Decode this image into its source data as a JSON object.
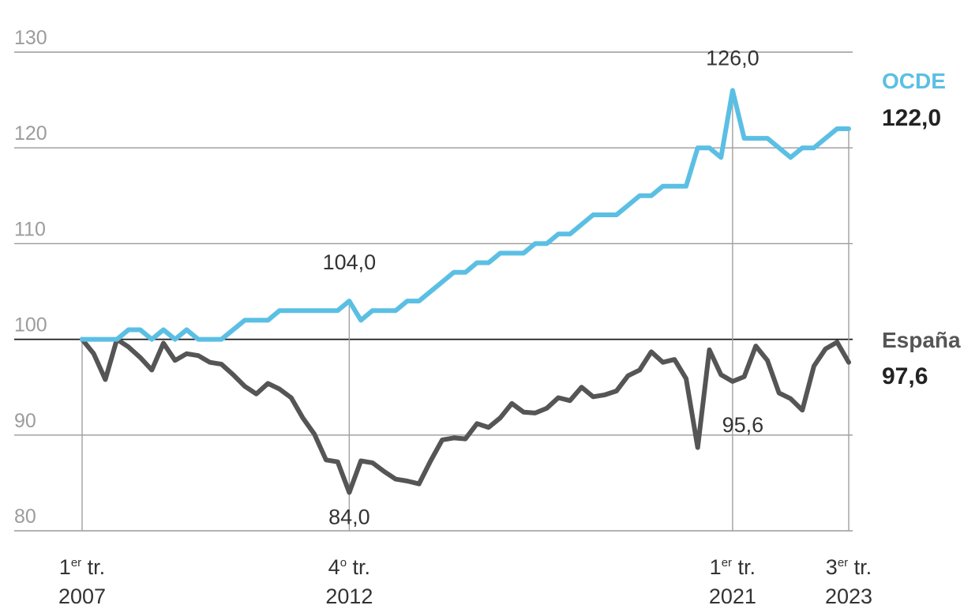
{
  "chart_data": {
    "type": "line",
    "ylim": [
      80,
      130
    ],
    "yticks": [
      "80",
      "90",
      "100",
      "110",
      "120",
      "130"
    ],
    "baseline": 100,
    "x_labels": [
      {
        "line1": "1",
        "sup": "er",
        "line1b": " tr.",
        "line2": "2007",
        "index": 0
      },
      {
        "line1": "4",
        "sup": "o",
        "line1b": " tr.",
        "line2": "2012",
        "index": 23
      },
      {
        "line1": "1",
        "sup": "er",
        "line1b": " tr.",
        "line2": "2021",
        "index": 56
      },
      {
        "line1": "3",
        "sup": "er",
        "line1b": " tr.",
        "line2": "2023",
        "index": 66
      }
    ],
    "series": [
      {
        "name": "OCDE",
        "color": "#5bbfe4",
        "last_label": "122,0",
        "values": [
          100,
          100,
          100,
          100,
          101,
          101,
          100,
          101,
          100,
          101,
          100,
          100,
          100,
          101,
          102,
          102,
          102,
          103,
          103,
          103,
          103,
          103,
          103,
          104,
          102,
          103,
          103,
          103,
          104,
          104,
          105,
          106,
          107,
          107,
          108,
          108,
          109,
          109,
          109,
          110,
          110,
          111,
          111,
          112,
          113,
          113,
          113,
          114,
          115,
          115,
          116,
          116,
          116,
          120,
          120,
          119,
          126,
          121,
          121,
          121,
          120,
          119,
          120,
          120,
          121,
          122,
          122
        ]
      },
      {
        "name": "España",
        "color": "#555555",
        "last_label": "97,6",
        "values": [
          100,
          98.5,
          95.8,
          100,
          99.2,
          98.1,
          96.8,
          99.6,
          97.8,
          98.5,
          98.3,
          97.6,
          97.4,
          96.3,
          95.1,
          94.3,
          95.4,
          94.8,
          93.9,
          91.8,
          90.1,
          87.4,
          87.2,
          84.0,
          87.3,
          87.1,
          86.2,
          85.4,
          85.2,
          84.9,
          87.3,
          89.5,
          89.7,
          89.6,
          91.2,
          90.8,
          91.8,
          93.3,
          92.4,
          92.3,
          92.8,
          93.9,
          93.6,
          95.0,
          94.0,
          94.2,
          94.6,
          96.2,
          96.8,
          98.7,
          97.6,
          97.9,
          95.9,
          88.7,
          98.9,
          96.3,
          95.6,
          96.1,
          99.3,
          97.8,
          94.4,
          93.8,
          92.6,
          97.2,
          99.0,
          99.7,
          97.6
        ]
      }
    ],
    "annotations": [
      {
        "text": "126,0",
        "series": 0,
        "index": 56
      },
      {
        "text": "104,0",
        "series": 0,
        "index": 23
      },
      {
        "text": "84,0",
        "series": 1,
        "index": 23
      },
      {
        "text": "95,6",
        "series": 1,
        "index": 56
      }
    ]
  }
}
